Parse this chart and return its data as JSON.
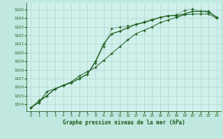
{
  "title": "Graphe pression niveau de la mer (hPa)",
  "bg_color": "#c0e8e0",
  "plot_bg_color": "#d0f0ec",
  "grid_color": "#b8d8d4",
  "line_color": "#1a5c1a",
  "xlim": [
    -0.5,
    23.5
  ],
  "ylim": [
    1013.2,
    1025.8
  ],
  "yticks": [
    1014,
    1015,
    1016,
    1017,
    1018,
    1019,
    1020,
    1021,
    1022,
    1023,
    1024,
    1025
  ],
  "xticks": [
    0,
    1,
    2,
    3,
    4,
    5,
    6,
    7,
    8,
    9,
    10,
    11,
    12,
    13,
    14,
    15,
    16,
    17,
    18,
    19,
    20,
    21,
    22,
    23
  ],
  "series1_x": [
    0,
    1,
    2,
    3,
    4,
    5,
    6,
    7,
    8,
    9,
    10,
    11,
    12,
    13,
    14,
    15,
    16,
    17,
    18,
    19,
    20,
    21,
    22,
    23
  ],
  "series1_y": [
    1013.6,
    1014.2,
    1015.5,
    1015.8,
    1016.2,
    1016.6,
    1017.3,
    1017.8,
    1018.3,
    1019.1,
    1019.9,
    1020.7,
    1021.5,
    1022.2,
    1022.6,
    1023.0,
    1023.5,
    1023.8,
    1024.1,
    1024.4,
    1024.5,
    1024.5,
    1024.5,
    1024.0
  ],
  "series2_x": [
    0,
    1,
    2,
    3,
    4,
    5,
    6,
    7,
    8,
    9,
    10,
    11,
    12,
    13,
    14,
    15,
    16,
    17,
    18,
    19,
    20,
    21,
    22,
    23
  ],
  "series2_y": [
    1013.6,
    1014.5,
    1015.0,
    1015.8,
    1016.2,
    1016.5,
    1017.0,
    1017.5,
    1018.8,
    1020.7,
    1022.8,
    1023.0,
    1023.1,
    1023.3,
    1023.6,
    1023.9,
    1024.1,
    1024.3,
    1024.4,
    1024.9,
    1025.1,
    1024.8,
    1024.7,
    1024.1
  ],
  "series3_x": [
    0,
    1,
    2,
    3,
    4,
    5,
    6,
    7,
    8,
    9,
    10,
    11,
    12,
    13,
    14,
    15,
    16,
    17,
    18,
    19,
    20,
    21,
    22,
    23
  ],
  "series3_y": [
    1013.6,
    1014.3,
    1015.0,
    1015.8,
    1016.2,
    1016.5,
    1017.0,
    1017.5,
    1019.0,
    1021.0,
    1022.2,
    1022.5,
    1022.9,
    1023.3,
    1023.5,
    1023.8,
    1024.1,
    1024.3,
    1024.3,
    1024.5,
    1024.8,
    1024.8,
    1024.8,
    1024.1
  ]
}
